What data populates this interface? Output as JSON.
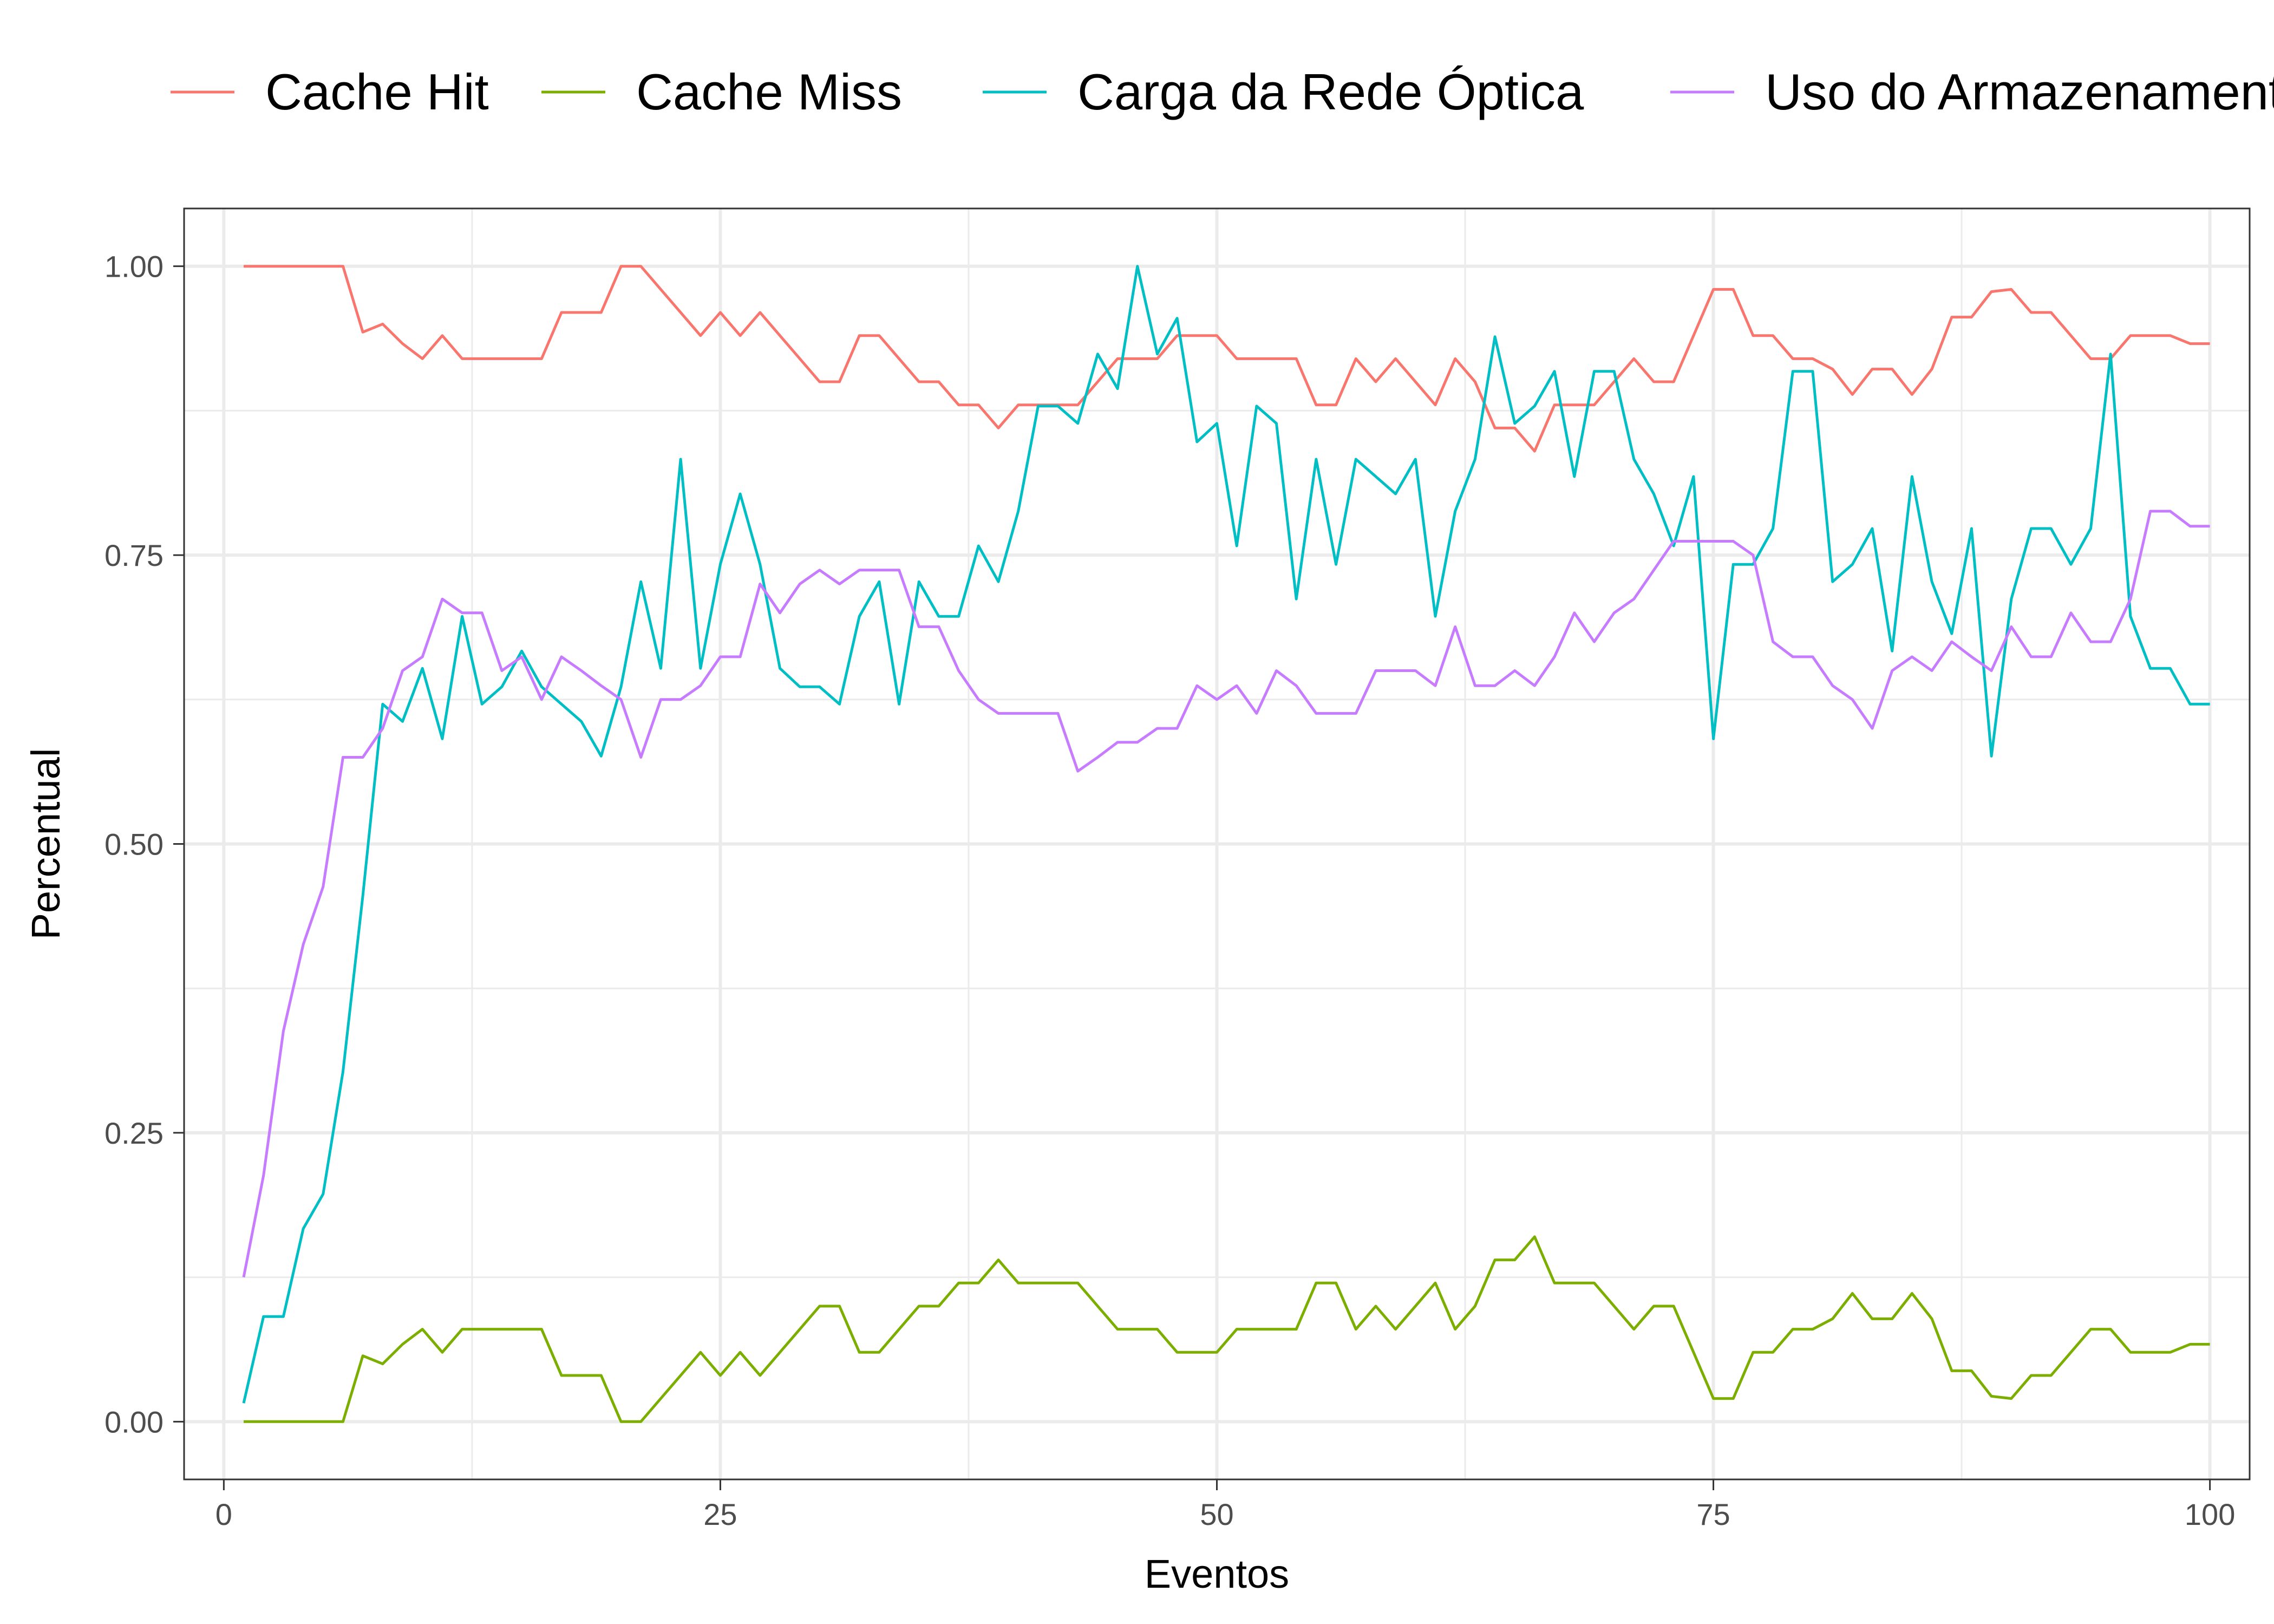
{
  "chart_data": {
    "type": "line",
    "title": "",
    "xlabel": "Eventos",
    "ylabel": "Percentual",
    "xlim": [
      -2,
      102
    ],
    "ylim": [
      -0.05,
      1.05
    ],
    "x_ticks": [
      0,
      25,
      50,
      75,
      100
    ],
    "x_tick_labels": [
      "0",
      "25",
      "50",
      "75",
      "100"
    ],
    "y_ticks": [
      0,
      0.25,
      0.5,
      0.75,
      1
    ],
    "y_tick_labels": [
      "0.00",
      "0.25",
      "0.50",
      "0.75",
      "1.00"
    ],
    "grid": true,
    "legend_position": "top",
    "x": [
      1,
      2,
      3,
      4,
      5,
      6,
      7,
      8,
      9,
      10,
      11,
      12,
      13,
      14,
      15,
      16,
      17,
      18,
      19,
      20,
      21,
      22,
      23,
      24,
      25,
      26,
      27,
      28,
      29,
      30,
      31,
      32,
      33,
      34,
      35,
      36,
      37,
      38,
      39,
      40,
      41,
      42,
      43,
      44,
      45,
      46,
      47,
      48,
      49,
      50,
      51,
      52,
      53,
      54,
      55,
      56,
      57,
      58,
      59,
      60,
      61,
      62,
      63,
      64,
      65,
      66,
      67,
      68,
      69,
      70,
      71,
      72,
      73,
      74,
      75,
      76,
      77,
      78,
      79,
      80,
      81,
      82,
      83,
      84,
      85,
      86,
      87,
      88,
      89,
      90,
      91,
      92,
      93,
      94,
      95,
      96,
      97,
      98,
      99,
      100
    ],
    "series": [
      {
        "name": "Cache Hit",
        "color": "#F8766D",
        "values": [
          1.0,
          1.0,
          1.0,
          1.0,
          1.0,
          1.0,
          0.943,
          0.95,
          0.933,
          0.92,
          0.94,
          0.92,
          0.92,
          0.92,
          0.92,
          0.92,
          0.96,
          0.96,
          0.96,
          1.0,
          1.0,
          0.98,
          0.96,
          0.94,
          0.96,
          0.94,
          0.96,
          0.94,
          0.92,
          0.9,
          0.9,
          0.94,
          0.94,
          0.92,
          0.9,
          0.9,
          0.88,
          0.88,
          0.86,
          0.88,
          0.88,
          0.88,
          0.88,
          0.9,
          0.92,
          0.92,
          0.92,
          0.94,
          0.94,
          0.94,
          0.92,
          0.92,
          0.92,
          0.92,
          0.88,
          0.88,
          0.92,
          0.9,
          0.92,
          0.9,
          0.88,
          0.92,
          0.9,
          0.86,
          0.86,
          0.84,
          0.88,
          0.88,
          0.88,
          0.9,
          0.92,
          0.9,
          0.9,
          0.94,
          0.98,
          0.98,
          0.94,
          0.94,
          0.92,
          0.92,
          0.911,
          0.889,
          0.911,
          0.911,
          0.889,
          0.911,
          0.956,
          0.956,
          0.978,
          0.98,
          0.96,
          0.96,
          0.94,
          0.92,
          0.92,
          0.94,
          0.94,
          0.94,
          0.933,
          0.933
        ]
      },
      {
        "name": "Cache Miss",
        "color": "#7CAE00",
        "values": [
          0.0,
          0.0,
          0.0,
          0.0,
          0.0,
          0.0,
          0.057,
          0.05,
          0.067,
          0.08,
          0.06,
          0.08,
          0.08,
          0.08,
          0.08,
          0.08,
          0.04,
          0.04,
          0.04,
          0.0,
          0.0,
          0.02,
          0.04,
          0.06,
          0.04,
          0.06,
          0.04,
          0.06,
          0.08,
          0.1,
          0.1,
          0.06,
          0.06,
          0.08,
          0.1,
          0.1,
          0.12,
          0.12,
          0.14,
          0.12,
          0.12,
          0.12,
          0.12,
          0.1,
          0.08,
          0.08,
          0.08,
          0.06,
          0.06,
          0.06,
          0.08,
          0.08,
          0.08,
          0.08,
          0.12,
          0.12,
          0.08,
          0.1,
          0.08,
          0.1,
          0.12,
          0.08,
          0.1,
          0.14,
          0.14,
          0.16,
          0.12,
          0.12,
          0.12,
          0.1,
          0.08,
          0.1,
          0.1,
          0.06,
          0.02,
          0.02,
          0.06,
          0.06,
          0.08,
          0.08,
          0.089,
          0.111,
          0.089,
          0.089,
          0.111,
          0.089,
          0.044,
          0.044,
          0.022,
          0.02,
          0.04,
          0.04,
          0.06,
          0.08,
          0.08,
          0.06,
          0.06,
          0.06,
          0.067,
          0.067
        ]
      },
      {
        "name": "Carga da Rede Óptica",
        "color": "#00BFC4",
        "values": [
          0.016,
          0.091,
          0.091,
          0.167,
          0.197,
          0.303,
          0.455,
          0.621,
          0.606,
          0.652,
          0.591,
          0.697,
          0.621,
          0.636,
          0.667,
          0.636,
          0.621,
          0.606,
          0.576,
          0.636,
          0.727,
          0.652,
          0.833,
          0.652,
          0.742,
          0.803,
          0.742,
          0.652,
          0.636,
          0.636,
          0.621,
          0.697,
          0.727,
          0.621,
          0.727,
          0.697,
          0.697,
          0.758,
          0.727,
          0.788,
          0.879,
          0.879,
          0.864,
          0.924,
          0.894,
          1.0,
          0.924,
          0.955,
          0.848,
          0.864,
          0.758,
          0.879,
          0.864,
          0.712,
          0.833,
          0.742,
          0.833,
          0.818,
          0.803,
          0.833,
          0.697,
          0.788,
          0.833,
          0.939,
          0.864,
          0.879,
          0.909,
          0.818,
          0.909,
          0.909,
          0.833,
          0.803,
          0.758,
          0.818,
          0.591,
          0.742,
          0.742,
          0.773,
          0.909,
          0.909,
          0.727,
          0.742,
          0.773,
          0.667,
          0.818,
          0.727,
          0.682,
          0.773,
          0.576,
          0.712,
          0.773,
          0.773,
          0.742,
          0.773,
          0.924,
          0.697,
          0.652,
          0.652,
          0.621,
          0.621
        ]
      },
      {
        "name": "Uso do Armazenamento",
        "color": "#C77CFF",
        "values": [
          0.125,
          0.213,
          0.338,
          0.413,
          0.463,
          0.575,
          0.575,
          0.6,
          0.65,
          0.662,
          0.712,
          0.7,
          0.7,
          0.65,
          0.662,
          0.625,
          0.662,
          0.65,
          0.637,
          0.625,
          0.575,
          0.625,
          0.625,
          0.637,
          0.662,
          0.662,
          0.725,
          0.7,
          0.725,
          0.737,
          0.725,
          0.737,
          0.737,
          0.737,
          0.688,
          0.688,
          0.65,
          0.625,
          0.613,
          0.613,
          0.613,
          0.613,
          0.563,
          0.575,
          0.588,
          0.588,
          0.6,
          0.6,
          0.637,
          0.625,
          0.637,
          0.613,
          0.65,
          0.637,
          0.613,
          0.613,
          0.613,
          0.65,
          0.65,
          0.65,
          0.637,
          0.688,
          0.637,
          0.637,
          0.65,
          0.637,
          0.662,
          0.7,
          0.675,
          0.7,
          0.712,
          0.737,
          0.762,
          0.762,
          0.762,
          0.762,
          0.75,
          0.675,
          0.662,
          0.662,
          0.637,
          0.625,
          0.6,
          0.65,
          0.662,
          0.65,
          0.675,
          0.662,
          0.65,
          0.688,
          0.662,
          0.662,
          0.7,
          0.675,
          0.675,
          0.712,
          0.788,
          0.788,
          0.775,
          0.775
        ]
      }
    ]
  }
}
